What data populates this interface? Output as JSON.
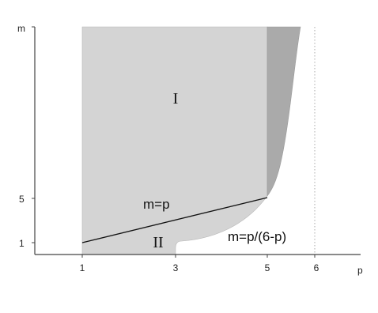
{
  "axes": {
    "x_title": "p",
    "y_title": "m",
    "x_ticks": [
      "1",
      "3",
      "5",
      "6"
    ],
    "y_ticks": [
      "1",
      "5"
    ]
  },
  "regions": {
    "region_one_label": "I",
    "region_two_label": "II"
  },
  "curves": {
    "line_label": "m=p",
    "hyperbola_label": "m=p/(6-p)"
  },
  "colors": {
    "light_region": "#d4d4d4",
    "dark_region": "#aaaaaa",
    "axis": "#444444",
    "dotted_line": "#aaaaaa"
  }
}
